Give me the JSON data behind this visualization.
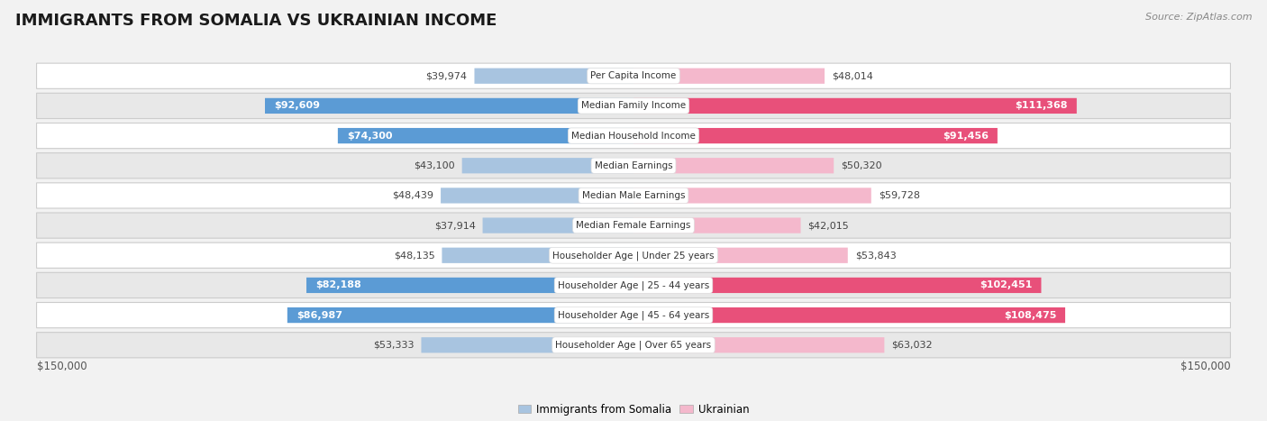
{
  "title": "IMMIGRANTS FROM SOMALIA VS UKRAINIAN INCOME",
  "source": "Source: ZipAtlas.com",
  "categories": [
    "Per Capita Income",
    "Median Family Income",
    "Median Household Income",
    "Median Earnings",
    "Median Male Earnings",
    "Median Female Earnings",
    "Householder Age | Under 25 years",
    "Householder Age | 25 - 44 years",
    "Householder Age | 45 - 64 years",
    "Householder Age | Over 65 years"
  ],
  "somalia_values": [
    39974,
    92609,
    74300,
    43100,
    48439,
    37914,
    48135,
    82188,
    86987,
    53333
  ],
  "ukrainian_values": [
    48014,
    111368,
    91456,
    50320,
    59728,
    42015,
    53843,
    102451,
    108475,
    63032
  ],
  "somalia_labels": [
    "$39,974",
    "$92,609",
    "$74,300",
    "$43,100",
    "$48,439",
    "$37,914",
    "$48,135",
    "$82,188",
    "$86,987",
    "$53,333"
  ],
  "ukrainian_labels": [
    "$48,014",
    "$111,368",
    "$91,456",
    "$50,320",
    "$59,728",
    "$42,015",
    "$53,843",
    "$102,451",
    "$108,475",
    "$63,032"
  ],
  "somalia_color_light": "#a8c4e0",
  "somalia_color_dark": "#5b9bd5",
  "ukrainian_color_light": "#f4b8cc",
  "ukrainian_color_dark": "#e8507a",
  "max_value": 150000,
  "legend_somalia": "Immigrants from Somalia",
  "legend_ukrainian": "Ukrainian",
  "x_label_left": "$150,000",
  "x_label_right": "$150,000",
  "bg_color": "#f2f2f2",
  "row_bg_even": "#ffffff",
  "row_bg_odd": "#e8e8e8",
  "label_threshold": 67000,
  "title_fontsize": 13,
  "source_fontsize": 8,
  "bar_label_fontsize": 8,
  "cat_label_fontsize": 7.5,
  "axis_label_fontsize": 8.5
}
